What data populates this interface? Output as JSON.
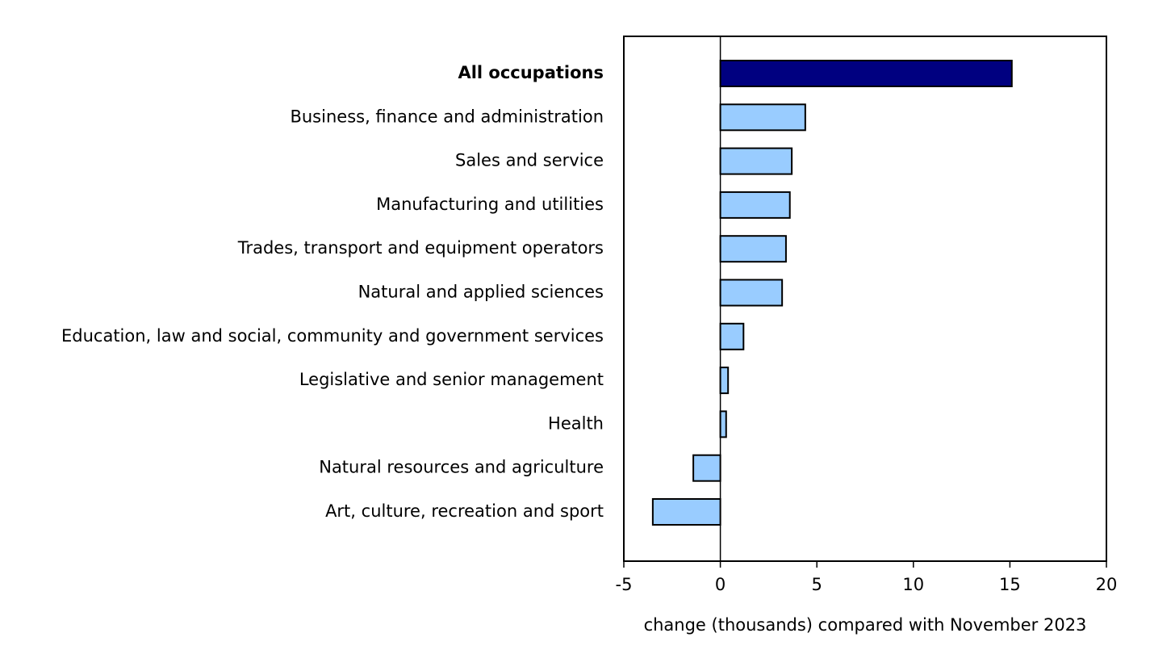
{
  "chart_data": {
    "type": "bar",
    "orientation": "horizontal",
    "categories": [
      "All occupations",
      "Business, finance and administration",
      "Sales and service",
      "Manufacturing and utilities",
      "Trades, transport and equipment operators",
      "Natural and applied sciences",
      "Education, law and social, community and government services",
      "Legislative and senior management",
      "Health",
      "Natural resources and agriculture",
      "Art, culture, recreation and sport"
    ],
    "values": [
      15.1,
      4.4,
      3.7,
      3.6,
      3.4,
      3.2,
      1.2,
      0.4,
      0.3,
      -1.4,
      -3.5
    ],
    "colors": [
      "#000080",
      "#99ccff",
      "#99ccff",
      "#99ccff",
      "#99ccff",
      "#99ccff",
      "#99ccff",
      "#99ccff",
      "#99ccff",
      "#99ccff",
      "#99ccff"
    ],
    "xlim": [
      -5,
      20
    ],
    "xticks": [
      -5,
      0,
      5,
      10,
      15,
      20
    ],
    "xlabel": "change (thousands) compared with November 2023"
  }
}
